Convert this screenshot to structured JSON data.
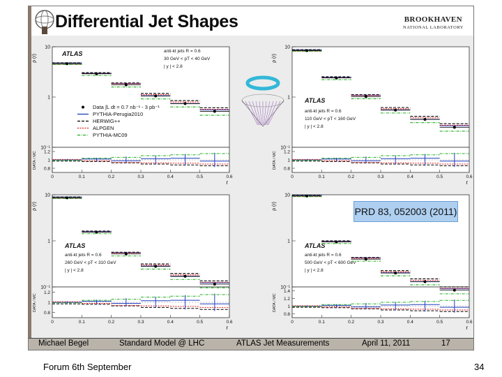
{
  "slide": {
    "title": "Differential Jet Shapes",
    "lab_name": "BROOKHAVEN",
    "lab_subtitle": "NATIONAL LABORATORY",
    "note": "PRD 83, 052003 (2011)",
    "footer": {
      "author": "Michael Begel",
      "event": "Standard Model @ LHC",
      "topic": "ATLAS Jet Measurements",
      "date": "April 11, 2011",
      "page": "17"
    }
  },
  "bottom_left": "Forum 6th September",
  "page_number": "34",
  "colors": {
    "data": "#000000",
    "pythia_perugia": "#1f3fbf",
    "herwig": "#000000",
    "alpgen": "#e02020",
    "pythia_mc09": "#22aa22"
  },
  "legend": {
    "entries": [
      "Data ∫L dt = 0.7 nb⁻¹ - 3 pb⁻¹",
      "PYTHIA-Perugia2010",
      "HERWIG++",
      "ALPGEN",
      "PYTHIA-MC09"
    ]
  },
  "chart_data": [
    {
      "type": "scatter",
      "experiment": "ATLAS",
      "cuts": [
        "anti-kt jets R = 0.6",
        "30 GeV < pT < 40 GeV",
        "| y | < 2.8"
      ],
      "ylabel": "ρ (r)",
      "ratio_ylabel": "DATA / MC",
      "xlabel": "r",
      "ylog": true,
      "ylim": [
        0.1,
        10
      ],
      "xlim": [
        0,
        0.6
      ],
      "x_ticks": [
        "0",
        "0.1",
        "0.2",
        "0.3",
        "0.4",
        "0.5",
        "0.6"
      ],
      "y_ticks": [
        "10⁻¹",
        "1",
        "10"
      ],
      "ratio_ticks": [
        "0.8",
        "1",
        "1.2"
      ],
      "ratio_ylim": [
        0.7,
        1.3
      ],
      "x": [
        0.05,
        0.15,
        0.25,
        0.35,
        0.45,
        0.55
      ],
      "values": [
        4.6,
        2.9,
        1.75,
        1.05,
        0.74,
        0.52
      ]
    },
    {
      "type": "scatter",
      "experiment": "ATLAS",
      "cuts": [
        "anti-kt jets R = 0.6",
        "110 GeV < pT < 160 GeV",
        "| y | < 2.8"
      ],
      "ylabel": "ρ (r)",
      "ratio_ylabel": "DATA / MC",
      "xlabel": "r",
      "ylog": true,
      "ylim": [
        0.1,
        10
      ],
      "xlim": [
        0,
        0.6
      ],
      "x_ticks": [
        "0",
        "0.1",
        "0.2",
        "0.3",
        "0.4",
        "0.5",
        "0.6"
      ],
      "y_ticks": [
        "10⁻¹",
        "1",
        "10"
      ],
      "ratio_ticks": [
        "0.8",
        "1",
        "1.2"
      ],
      "ratio_ylim": [
        0.7,
        1.3
      ],
      "x": [
        0.05,
        0.15,
        0.25,
        0.35,
        0.45,
        0.55
      ],
      "values": [
        8.4,
        2.4,
        1.02,
        0.55,
        0.36,
        0.25
      ]
    },
    {
      "type": "scatter",
      "experiment": "ATLAS",
      "cuts": [
        "anti-kt jets R = 0.6",
        "260 GeV < pT < 310 GeV",
        "| y | < 2.8"
      ],
      "ylabel": "ρ (r)",
      "ratio_ylabel": "DATA / MC",
      "xlabel": "r",
      "ylog": true,
      "ylim": [
        0.1,
        10
      ],
      "xlim": [
        0,
        0.6
      ],
      "x_ticks": [
        "0",
        "0.1",
        "0.2",
        "0.3",
        "0.4",
        "0.5",
        "0.6"
      ],
      "y_ticks": [
        "10⁻¹",
        "1",
        "10"
      ],
      "ratio_ticks": [
        "0.8",
        "1",
        "1.2"
      ],
      "ratio_ylim": [
        0.7,
        1.3
      ],
      "x": [
        0.05,
        0.15,
        0.25,
        0.35,
        0.45,
        0.55
      ],
      "values": [
        8.6,
        1.55,
        0.52,
        0.28,
        0.17,
        0.115
      ]
    },
    {
      "type": "scatter",
      "experiment": "ATLAS",
      "cuts": [
        "anti-kt jets R = 0.6",
        "500 GeV < pT < 600 GeV",
        "| y | < 2.8"
      ],
      "ylabel": "ρ (r)",
      "ratio_ylabel": "DATA / MC",
      "xlabel": "r",
      "ylog": true,
      "ylim": [
        0.1,
        10
      ],
      "xlim": [
        0,
        0.6
      ],
      "x_ticks": [
        "0",
        "0.1",
        "0.2",
        "0.3",
        "0.4",
        "0.5",
        "0.6"
      ],
      "y_ticks": [
        "10⁻¹",
        "1",
        "10"
      ],
      "ratio_ticks": [
        "0.8",
        "1",
        "1.2",
        "1.4"
      ],
      "ratio_ylim": [
        0.7,
        1.5
      ],
      "x": [
        0.05,
        0.15,
        0.25,
        0.35,
        0.45,
        0.55
      ],
      "values": [
        9.4,
        0.95,
        0.4,
        0.2,
        0.13,
        0.085
      ]
    }
  ]
}
